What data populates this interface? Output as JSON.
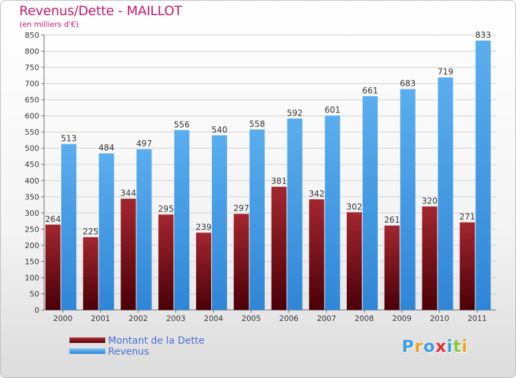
{
  "header": {
    "title": "Revenus/Dette - MAILLOT",
    "subtitle": "(en milliers d'€)"
  },
  "legend": {
    "items": [
      {
        "label": "Montant de la Dette",
        "color": "#7a0f16"
      },
      {
        "label": "Revenus",
        "color": "#4a9fe6"
      }
    ]
  },
  "logo": {
    "text": "Proxiti",
    "letters": [
      "P",
      "r",
      "o",
      "x",
      "i",
      "t",
      "i"
    ],
    "colors": [
      "#3aa0e0",
      "#f0a020",
      "#3aa0e0",
      "#e03030",
      "#3aa0e0",
      "#8cc63f",
      "#f0a020"
    ]
  },
  "chart_data": {
    "type": "bar",
    "title": "Revenus/Dette - MAILLOT",
    "subtitle": "(en milliers d'€)",
    "categories": [
      "2000",
      "2001",
      "2002",
      "2003",
      "2004",
      "2005",
      "2006",
      "2007",
      "2008",
      "2009",
      "2010",
      "2011"
    ],
    "series": [
      {
        "name": "Montant de la Dette",
        "color": "#7a0f16",
        "values": [
          264,
          225,
          344,
          295,
          239,
          297,
          381,
          342,
          302,
          261,
          320,
          271
        ]
      },
      {
        "name": "Revenus",
        "color": "#4a9fe6",
        "values": [
          513,
          484,
          497,
          556,
          540,
          558,
          592,
          601,
          661,
          683,
          719,
          833
        ]
      }
    ],
    "ylim": [
      0,
      850
    ],
    "yticks": [
      0,
      50,
      100,
      150,
      200,
      250,
      300,
      350,
      400,
      450,
      500,
      550,
      600,
      650,
      700,
      750,
      800,
      850
    ],
    "grid": true,
    "legend_position": "bottom-left"
  }
}
